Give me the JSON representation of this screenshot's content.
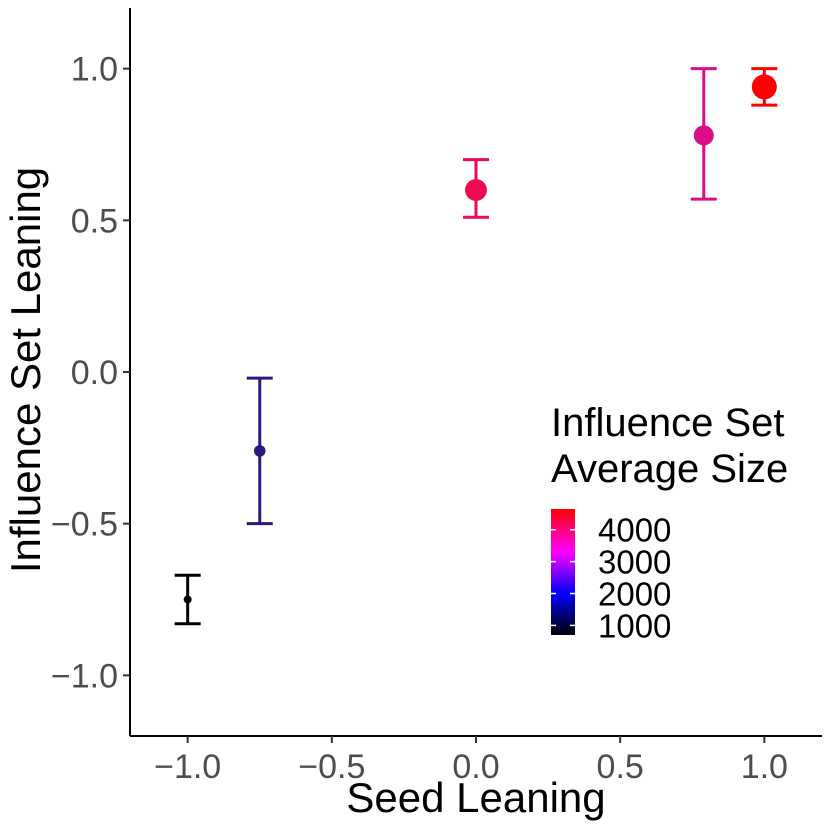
{
  "chart_data": {
    "type": "scatter",
    "title": "",
    "xlabel": "Seed Leaning",
    "ylabel": "Influence Set Leaning",
    "xlim": [
      -1.2,
      1.2
    ],
    "ylim": [
      -1.2,
      1.2
    ],
    "x_ticks": [
      -1.0,
      -0.5,
      0.0,
      0.5,
      1.0
    ],
    "x_tick_labels": [
      "−1.0",
      "−0.5",
      "0.0",
      "0.5",
      "1.0"
    ],
    "y_ticks": [
      -1.0,
      -0.5,
      0.0,
      0.5,
      1.0
    ],
    "y_tick_labels": [
      "−1.0",
      "−0.5",
      "0.0",
      "0.5",
      "1.0"
    ],
    "grid": false,
    "points": [
      {
        "x": -1.0,
        "y": -0.75,
        "ymin": -0.83,
        "ymax": -0.67,
        "size_value": 700,
        "color": "#000000"
      },
      {
        "x": -0.75,
        "y": -0.26,
        "ymin": -0.5,
        "ymax": -0.02,
        "size_value": 1500,
        "color": "#2a1a80"
      },
      {
        "x": 0.0,
        "y": 0.6,
        "ymin": 0.51,
        "ymax": 0.7,
        "size_value": 3700,
        "color": "#ee0a50"
      },
      {
        "x": 0.79,
        "y": 0.78,
        "ymin": 0.57,
        "ymax": 1.0,
        "size_value": 3300,
        "color": "#d80d8a"
      },
      {
        "x": 1.0,
        "y": 0.94,
        "ymin": 0.88,
        "ymax": 1.0,
        "size_value": 4400,
        "color": "#ff0000"
      }
    ],
    "legend": {
      "title_line1": "Influence Set",
      "title_line2": "Average Size",
      "position": "bottom-right",
      "labels": [
        "4000",
        "3000",
        "2000",
        "1000"
      ],
      "label_values": [
        4000,
        3000,
        2000,
        1000
      ],
      "range": [
        700,
        4650
      ],
      "gradient": [
        "#000000",
        "#0000ff",
        "#ff00ff",
        "#ff0000"
      ]
    },
    "colors": {
      "axis": "#000000",
      "tick_label": "#4d4d4d"
    }
  }
}
